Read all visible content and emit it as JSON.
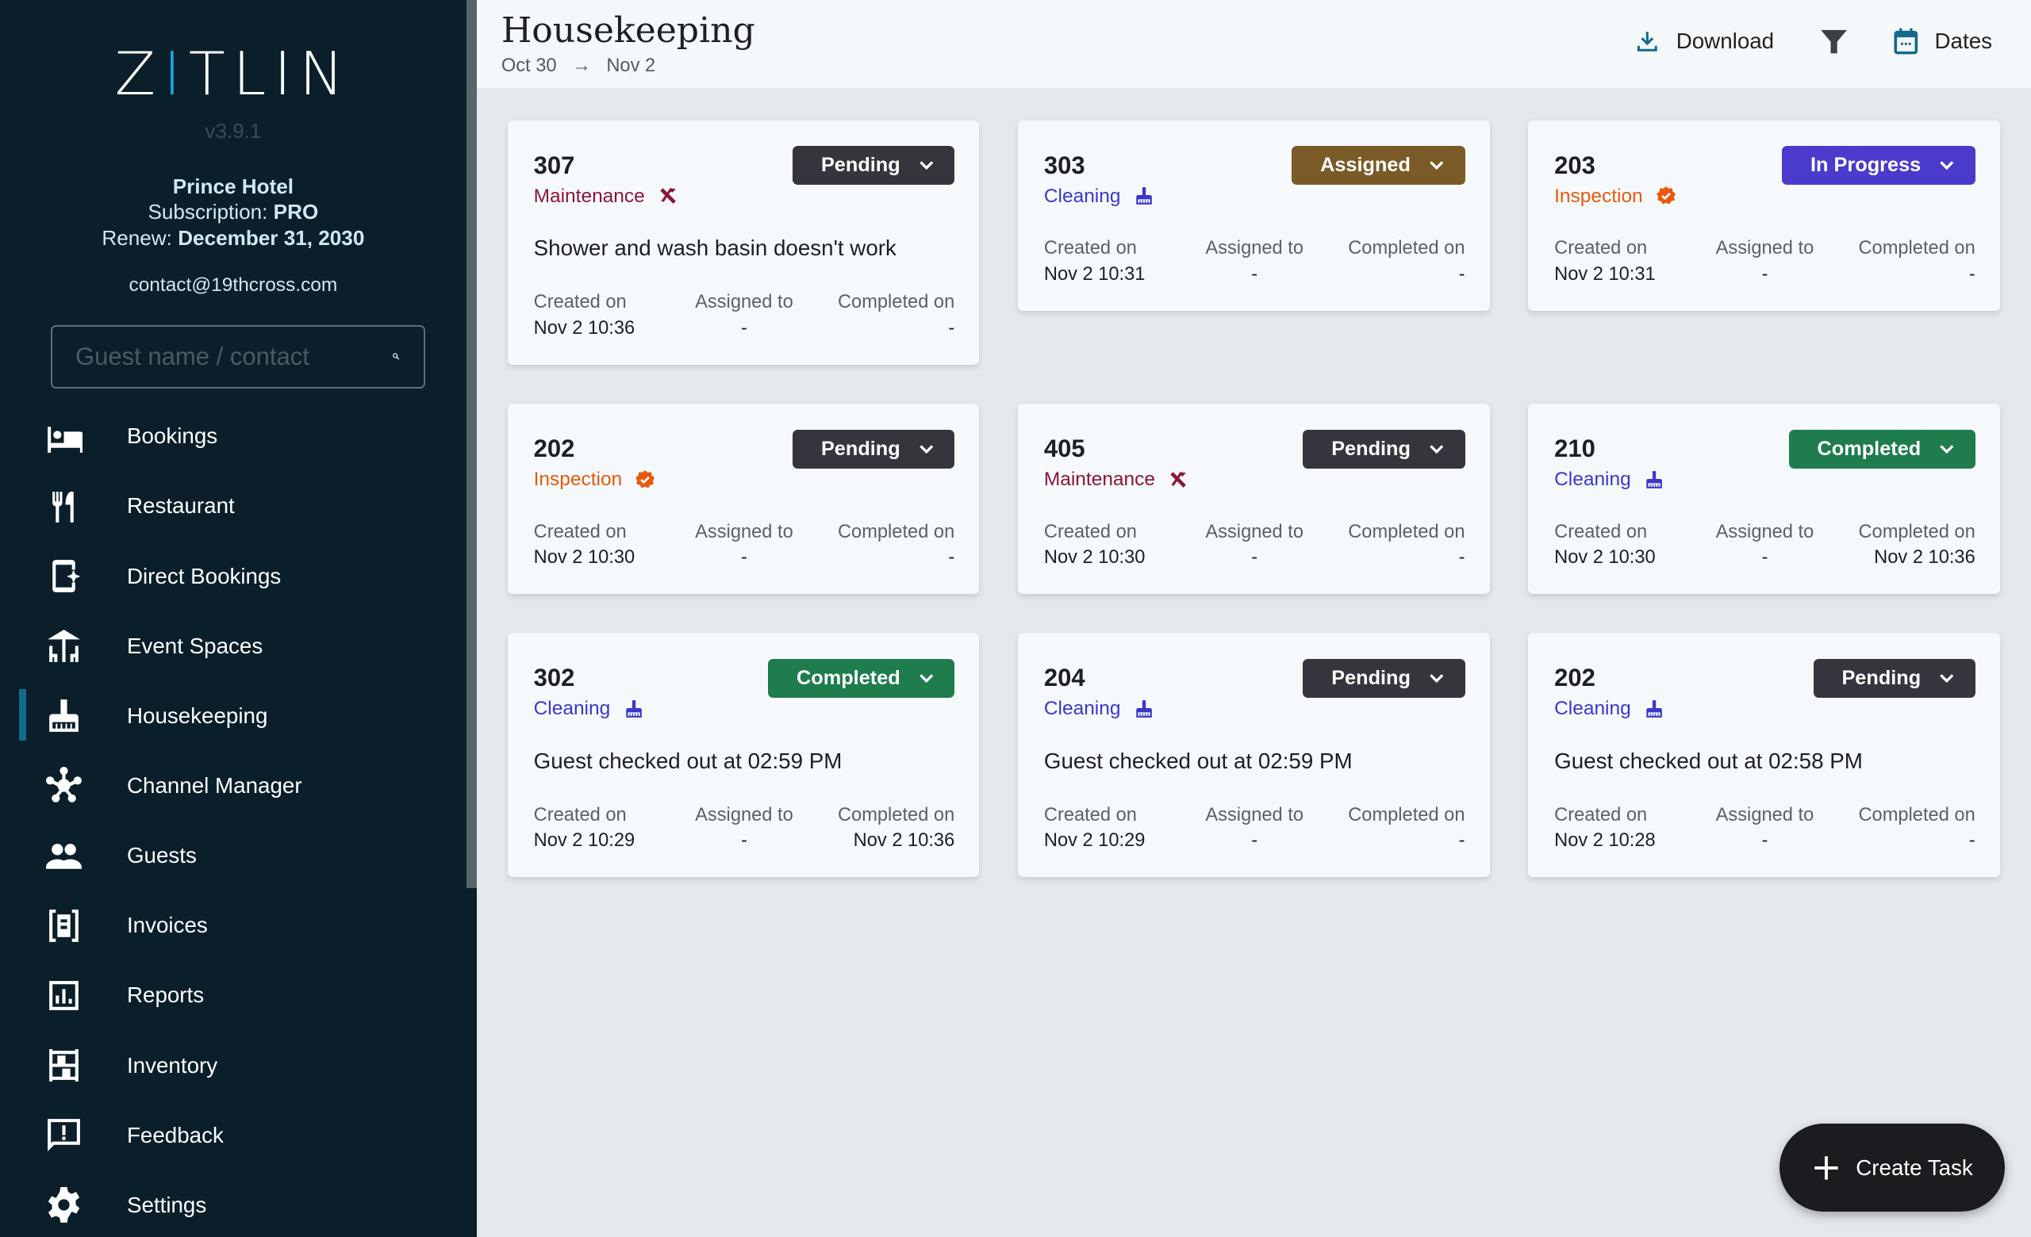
{
  "sidebar": {
    "logo": "ZITLIN",
    "version": "v3.9.1",
    "hotel_name": "Prince Hotel",
    "subscription_label": "Subscription:",
    "subscription": "PRO",
    "renew_label": "Renew:",
    "renew_date": "December 31, 2030",
    "contact": "contact@19thcross.com",
    "search_placeholder": "Guest name / contact",
    "items": [
      {
        "label": "Bookings",
        "icon": "bed-icon"
      },
      {
        "label": "Restaurant",
        "icon": "restaurant-icon"
      },
      {
        "label": "Direct Bookings",
        "icon": "mobile-sparkle-icon"
      },
      {
        "label": "Event Spaces",
        "icon": "event-table-icon"
      },
      {
        "label": "Housekeeping",
        "icon": "broom-icon",
        "active": true
      },
      {
        "label": "Channel Manager",
        "icon": "hub-icon"
      },
      {
        "label": "Guests",
        "icon": "people-icon"
      },
      {
        "label": "Invoices",
        "icon": "receipt-icon"
      },
      {
        "label": "Reports",
        "icon": "chart-icon"
      },
      {
        "label": "Inventory",
        "icon": "shelves-icon"
      },
      {
        "label": "Feedback",
        "icon": "feedback-icon"
      },
      {
        "label": "Settings",
        "icon": "gear-icon"
      }
    ]
  },
  "header": {
    "title": "Housekeeping",
    "date_from": "Oct 30",
    "date_arrow": "→",
    "date_to": "Nov 2",
    "download": "Download",
    "dates": "Dates"
  },
  "labels": {
    "created": "Created on",
    "assigned": "Assigned to",
    "completed": "Completed on"
  },
  "colors": {
    "Pending": "#35363d",
    "Assigned": "#7a5a26",
    "In Progress": "#4a3bcc",
    "Completed": "#1e7c4d",
    "Maintenance": "#8b1538",
    "Cleaning": "#3b37c9",
    "Inspection": "#e8590c"
  },
  "tasks": [
    {
      "room": "307",
      "type": "Maintenance",
      "status": "Pending",
      "desc": "Shower and wash basin doesn't work",
      "created": "Nov 2 10:36",
      "assigned": "-",
      "completed": "-"
    },
    {
      "room": "303",
      "type": "Cleaning",
      "status": "Assigned",
      "desc": "",
      "created": "Nov 2 10:31",
      "assigned": "-",
      "completed": "-"
    },
    {
      "room": "203",
      "type": "Inspection",
      "status": "In Progress",
      "desc": "",
      "created": "Nov 2 10:31",
      "assigned": "-",
      "completed": "-"
    },
    {
      "room": "202",
      "type": "Inspection",
      "status": "Pending",
      "desc": "",
      "created": "Nov 2 10:30",
      "assigned": "-",
      "completed": "-"
    },
    {
      "room": "405",
      "type": "Maintenance",
      "status": "Pending",
      "desc": "",
      "created": "Nov 2 10:30",
      "assigned": "-",
      "completed": "-"
    },
    {
      "room": "210",
      "type": "Cleaning",
      "status": "Completed",
      "desc": "",
      "created": "Nov 2 10:30",
      "assigned": "-",
      "completed": "Nov 2 10:36"
    },
    {
      "room": "302",
      "type": "Cleaning",
      "status": "Completed",
      "desc": "Guest checked out at 02:59 PM",
      "created": "Nov 2 10:29",
      "assigned": "-",
      "completed": "Nov 2 10:36"
    },
    {
      "room": "204",
      "type": "Cleaning",
      "status": "Pending",
      "desc": "Guest checked out at 02:59 PM",
      "created": "Nov 2 10:29",
      "assigned": "-",
      "completed": "-"
    },
    {
      "room": "202",
      "type": "Cleaning",
      "status": "Pending",
      "desc": "Guest checked out at 02:58 PM",
      "created": "Nov 2 10:28",
      "assigned": "-",
      "completed": "-"
    }
  ],
  "fab": {
    "label": "Create Task"
  }
}
